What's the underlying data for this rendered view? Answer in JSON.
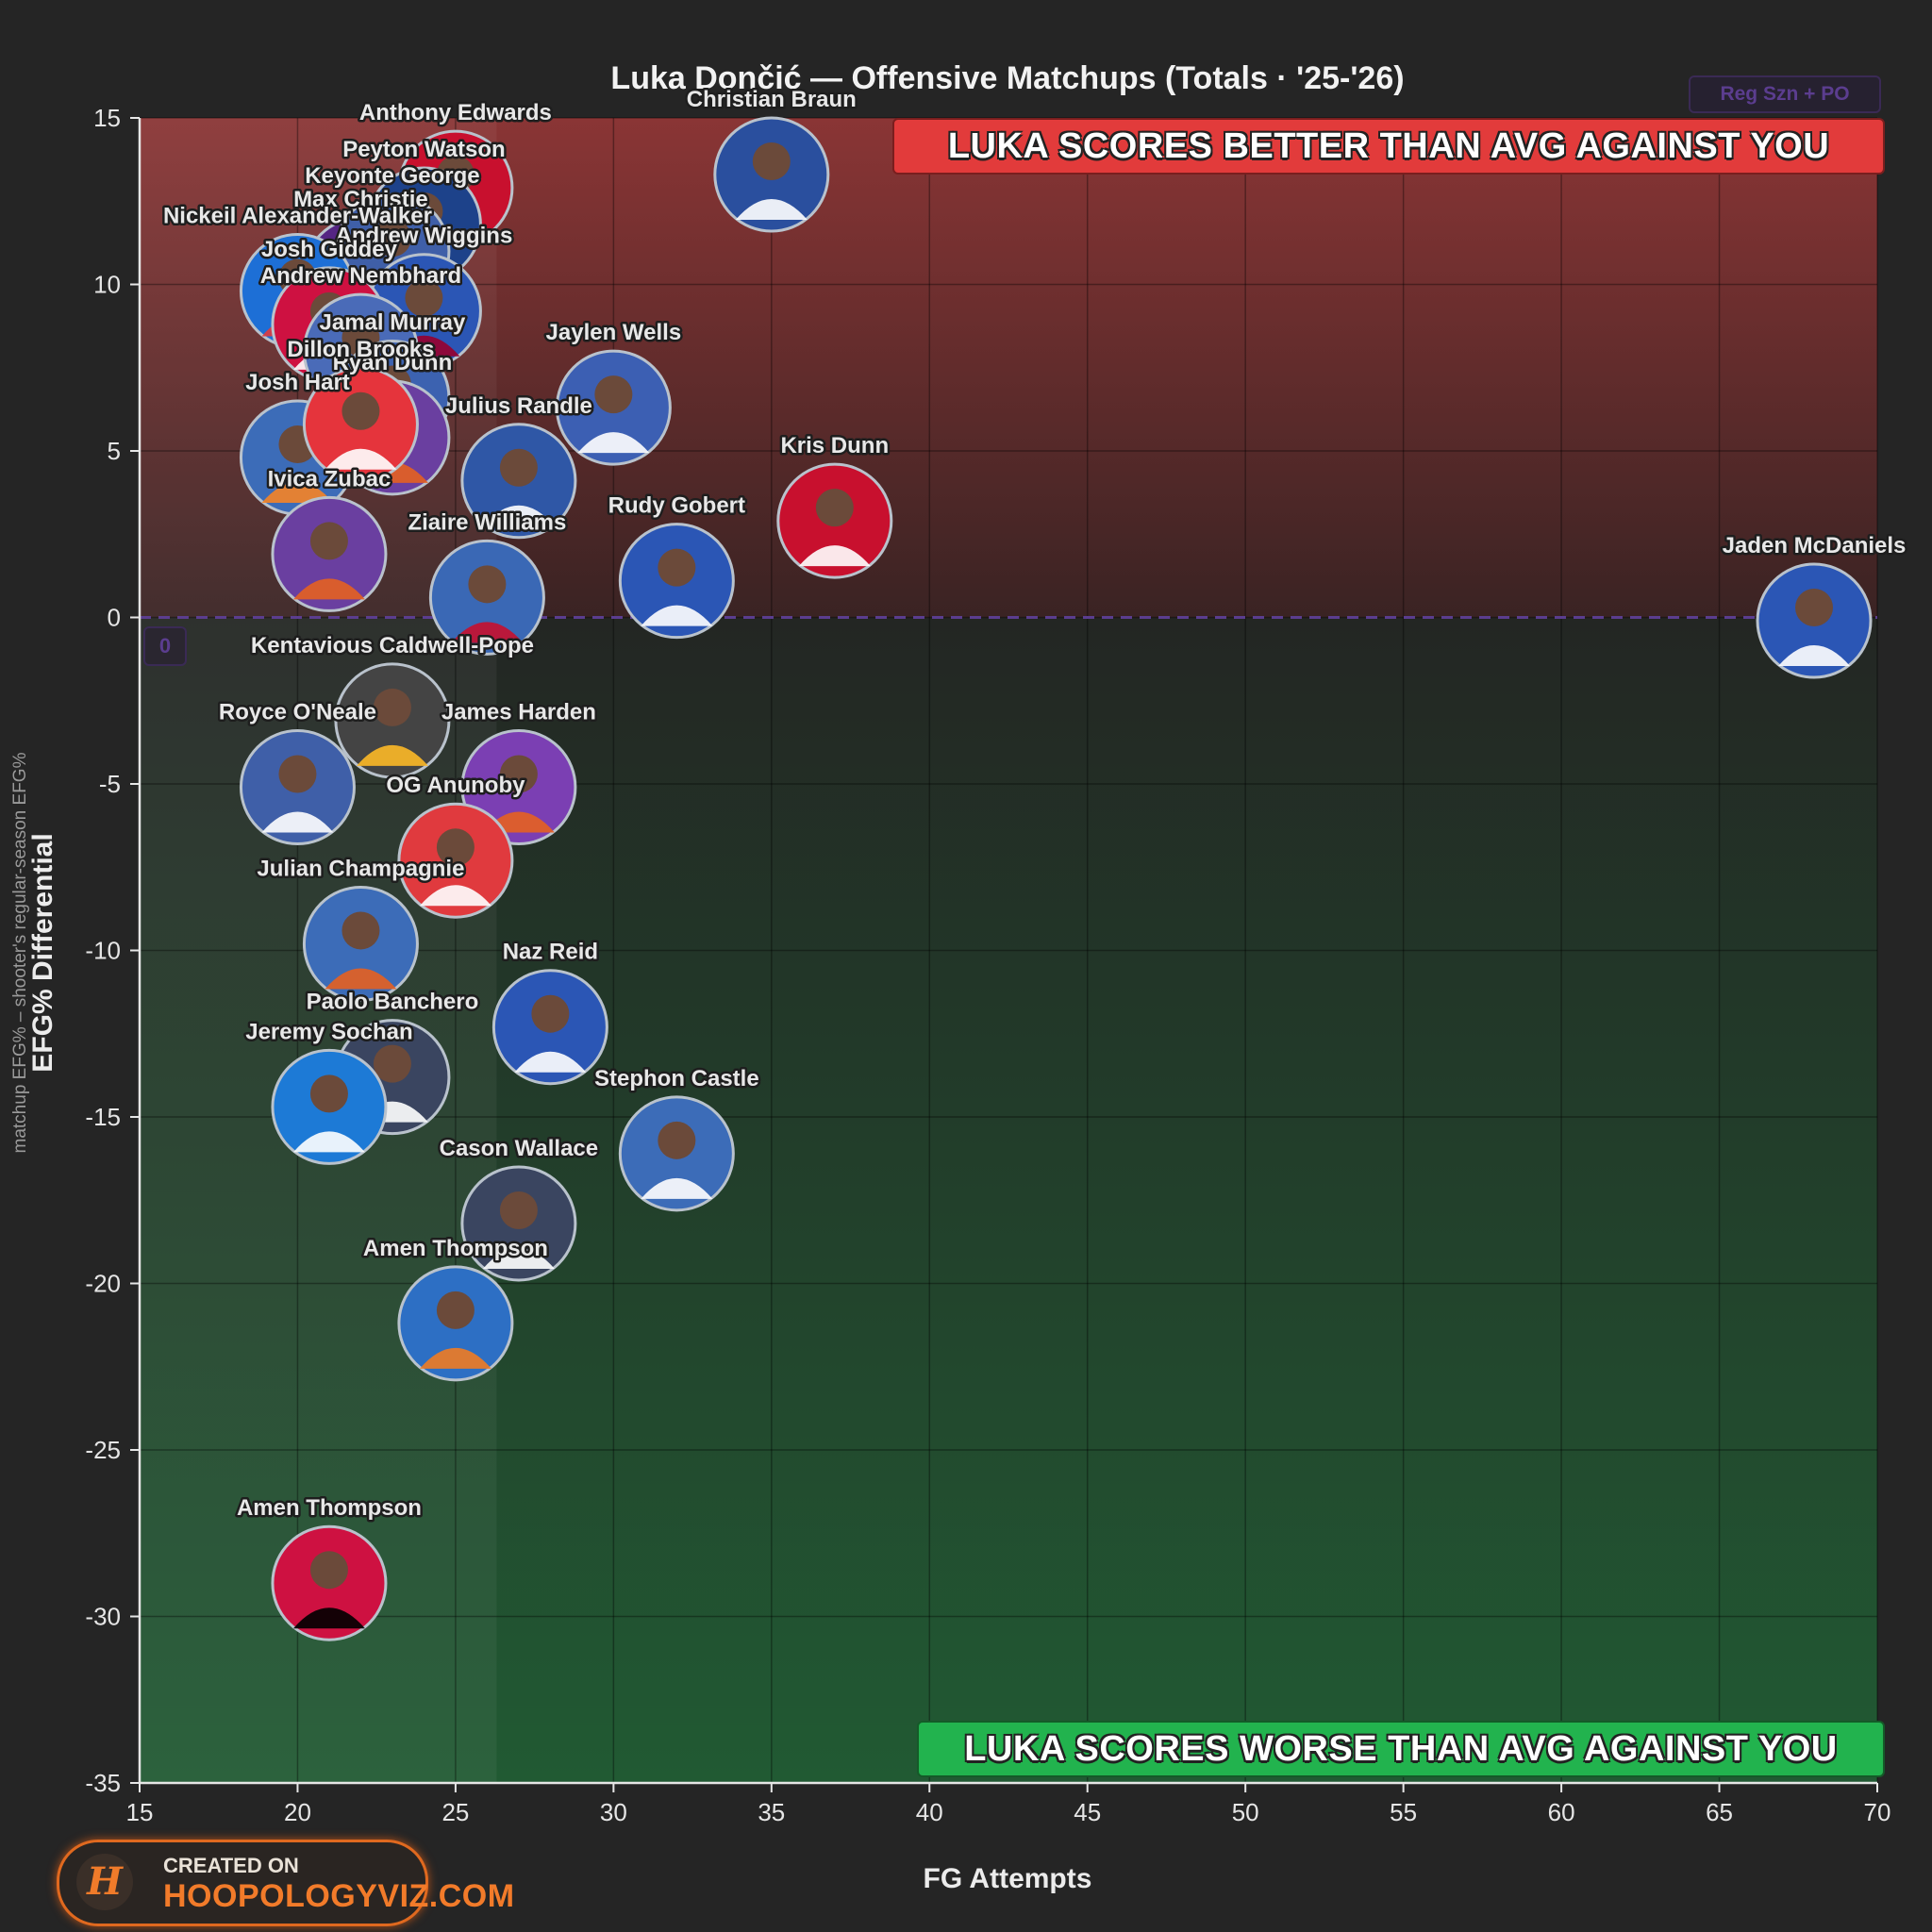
{
  "title": "Luka Dončić — Offensive Matchups (Totals · '25-'26)",
  "season_badge": "Reg Szn + PO",
  "banner_top": "LUKA SCORES BETTER THAN AVG AGAINST YOU",
  "banner_bottom": "LUKA SCORES WORSE THAN AVG AGAINST YOU",
  "zero_badge": "0",
  "credit": {
    "line1": "CREATED ON",
    "line2": "HOOPOLOGYVIZ.COM",
    "logo": "H"
  },
  "colors": {
    "positive_region": "#6e2b2b",
    "negative_region": "#1f4a2e",
    "banner_top": "#e23b3b",
    "banner_bottom": "#22b34e",
    "zero_line": "#5b3d8f",
    "credit_accent": "#f27b2a"
  },
  "chart_data": {
    "type": "scatter",
    "title": "Luka Dončić — Offensive Matchups (Totals · '25-'26)",
    "xlabel": "FG Attempts",
    "ylabel": "EFG% Differential",
    "ylabel_sub": "matchup EFG% – shooter's regular-season EFG%",
    "xlim": [
      15,
      70
    ],
    "ylim": [
      -35,
      15
    ],
    "x_ticks": [
      15,
      20,
      25,
      30,
      35,
      40,
      45,
      50,
      55,
      60,
      65,
      70
    ],
    "y_ticks": [
      15,
      10,
      5,
      0,
      -5,
      -10,
      -15,
      -20,
      -25,
      -30,
      -35
    ],
    "grid": true,
    "points": [
      {
        "name": "Anthony Edwards",
        "x": 25,
        "y": 12.9,
        "color": "#c8102e",
        "jersey": "#ffffff"
      },
      {
        "name": "Peyton Watson",
        "x": 24,
        "y": 11.8,
        "color": "#1d428a",
        "jersey": "#fdb927"
      },
      {
        "name": "Max Christie",
        "x": 22,
        "y": 10.3,
        "color": "#552583",
        "jersey": "#fdb927"
      },
      {
        "name": "Keyonte George",
        "x": 23,
        "y": 11.0,
        "color": "#3f5fa8",
        "jersey": "#753bbd"
      },
      {
        "name": "Nickeil Alexander-Walker",
        "x": 20,
        "y": 9.8,
        "color": "#1d6fd6",
        "jersey": "#e03a3e"
      },
      {
        "name": "Andrew Wiggins",
        "x": 24,
        "y": 9.2,
        "color": "#2b56b5",
        "jersey": "#98002e"
      },
      {
        "name": "Josh Giddey",
        "x": 21,
        "y": 8.8,
        "color": "#ce1141",
        "jersey": "#ffffff"
      },
      {
        "name": "Andrew Nembhard",
        "x": 22,
        "y": 8.0,
        "color": "#4a6bb8",
        "jersey": "#fdbb30"
      },
      {
        "name": "Jamal Murray",
        "x": 23,
        "y": 6.6,
        "color": "#3c62b0",
        "jersey": "#fec524"
      },
      {
        "name": "Josh Hart",
        "x": 20,
        "y": 4.8,
        "color": "#3c6cb8",
        "jersey": "#f58426"
      },
      {
        "name": "Ryan Dunn",
        "x": 23,
        "y": 5.4,
        "color": "#6a3fa0",
        "jersey": "#e56020"
      },
      {
        "name": "Dillon Brooks",
        "x": 22,
        "y": 5.8,
        "color": "#e5343c",
        "jersey": "#ffffff"
      },
      {
        "name": "Julius Randle",
        "x": 27,
        "y": 4.1,
        "color": "#2f57a6",
        "jersey": "#ffffff"
      },
      {
        "name": "Ivica Zubac",
        "x": 21,
        "y": 1.9,
        "color": "#6a3fa0",
        "jersey": "#e56020"
      },
      {
        "name": "Jaylen Wells",
        "x": 30,
        "y": 6.3,
        "color": "#3c5fb3",
        "jersey": "#ffffff"
      },
      {
        "name": "Christian Braun",
        "x": 35,
        "y": 13.3,
        "color": "#2a4f9e",
        "jersey": "#ffffff"
      },
      {
        "name": "Kris Dunn",
        "x": 37,
        "y": 2.9,
        "color": "#c8102e",
        "jersey": "#ffffff"
      },
      {
        "name": "Rudy Gobert",
        "x": 32,
        "y": 1.1,
        "color": "#2b56b5",
        "jersey": "#ffffff"
      },
      {
        "name": "Jaden McDaniels",
        "x": 68,
        "y": -0.1,
        "color": "#2b56b5",
        "jersey": "#ffffff"
      },
      {
        "name": "Ziaire Williams",
        "x": 26,
        "y": 0.6,
        "color": "#3a68b5",
        "jersey": "#c8102e"
      },
      {
        "name": "Kentavious Caldwell-Pope",
        "x": 23,
        "y": -3.1,
        "color": "#444444",
        "jersey": "#fdb927"
      },
      {
        "name": "Royce O'Neale",
        "x": 20,
        "y": -5.1,
        "color": "#3f5fa8",
        "jersey": "#ffffff"
      },
      {
        "name": "James Harden",
        "x": 27,
        "y": -5.1,
        "color": "#7b3fb3",
        "jersey": "#e56020"
      },
      {
        "name": "OG Anunoby",
        "x": 25,
        "y": -7.3,
        "color": "#e03a3e",
        "jersey": "#ffffff"
      },
      {
        "name": "Julian Champagnie",
        "x": 22,
        "y": -9.8,
        "color": "#3c6cb8",
        "jersey": "#e56020"
      },
      {
        "name": "Naz Reid",
        "x": 28,
        "y": -12.3,
        "color": "#2b56b5",
        "jersey": "#ffffff"
      },
      {
        "name": "Paolo Banchero",
        "x": 23,
        "y": -13.8,
        "color": "#3a4560",
        "jersey": "#ffffff"
      },
      {
        "name": "Jeremy Sochan",
        "x": 21,
        "y": -14.7,
        "color": "#1d7ad6",
        "jersey": "#ffffff"
      },
      {
        "name": "Stephon Castle",
        "x": 32,
        "y": -16.1,
        "color": "#3c6cb8",
        "jersey": "#ffffff"
      },
      {
        "name": "Cason Wallace",
        "x": 27,
        "y": -18.2,
        "color": "#3a4560",
        "jersey": "#ffffff"
      },
      {
        "name": "Amen Thompson",
        "x": 25,
        "y": -21.2,
        "color": "#2d6fc4",
        "jersey": "#ef7b23"
      },
      {
        "name": "Amen Thompson",
        "x": 21,
        "y": -29.0,
        "color": "#ce1141",
        "jersey": "#000000"
      }
    ]
  }
}
